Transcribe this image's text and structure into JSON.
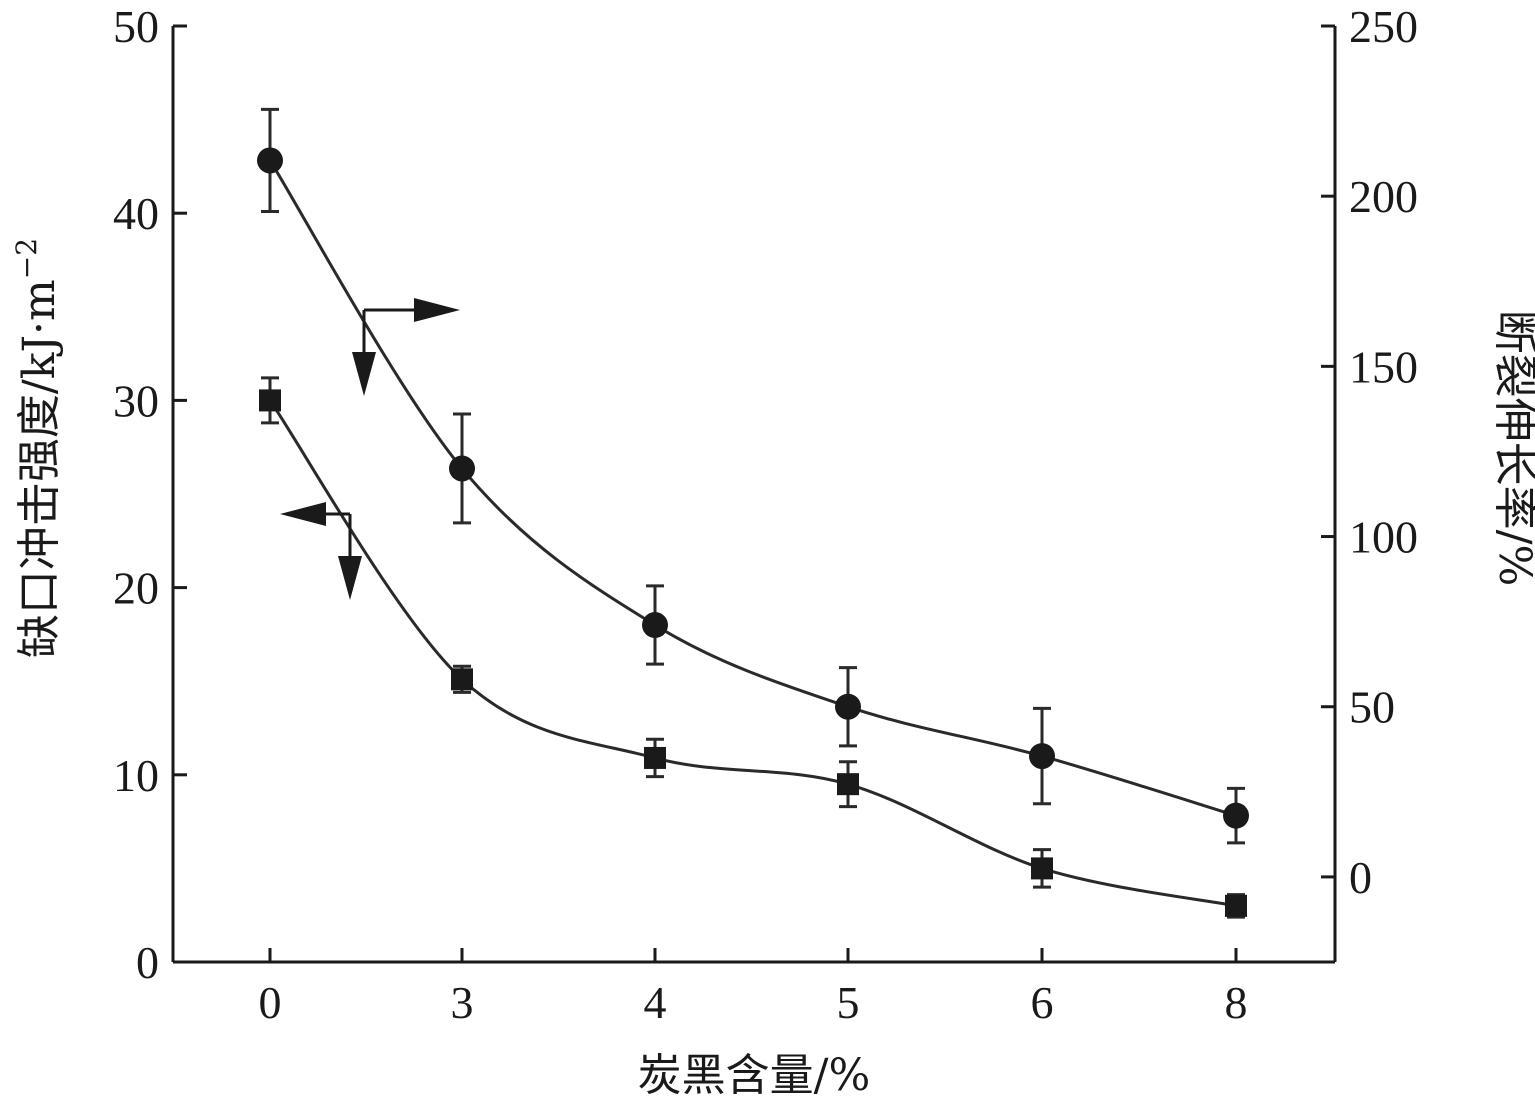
{
  "chart_data": {
    "type": "scatter",
    "title": "",
    "xlabel": "炭黑含量/%",
    "ylabel_left": "缺口冲击强度/kJ·m",
    "ylabel_left_sup": "−2",
    "ylabel_right": "断裂伸长率/%",
    "categories": [
      "0",
      "3",
      "4",
      "5",
      "6",
      "8"
    ],
    "ylim_left": [
      0,
      50
    ],
    "yticks_left": [
      0,
      10,
      20,
      30,
      40,
      50
    ],
    "ylim_right": [
      -25,
      250
    ],
    "yticks_right": [
      0,
      50,
      100,
      150,
      200,
      250
    ],
    "grid": false,
    "legend": "none",
    "series": [
      {
        "axis": "left",
        "marker": "square",
        "values": [
          30.0,
          15.1,
          10.9,
          9.5,
          5.0,
          3.0
        ],
        "errors": [
          1.2,
          0.7,
          1.0,
          1.2,
          1.0,
          0.6
        ]
      },
      {
        "axis": "right",
        "marker": "circle",
        "values": [
          210.5,
          120.0,
          74.0,
          50.0,
          35.5,
          18.0
        ],
        "errors": [
          15.0,
          16.0,
          11.5,
          11.5,
          14.0,
          8.0
        ]
      }
    ],
    "colors": {
      "line": "#2a2a2a",
      "marker": "#1a1a1a"
    }
  }
}
